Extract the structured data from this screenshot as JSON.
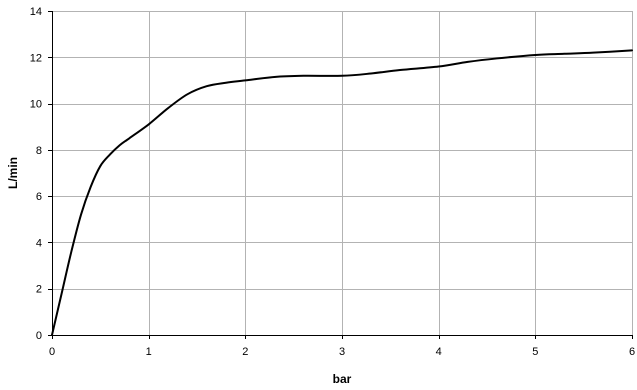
{
  "chart_data": {
    "type": "line",
    "title": "",
    "xlabel": "bar",
    "ylabel": "L/min",
    "xlim": [
      0,
      6
    ],
    "ylim": [
      0,
      14
    ],
    "xticks": [
      0,
      1,
      2,
      3,
      4,
      5,
      6
    ],
    "yticks": [
      0,
      2,
      4,
      6,
      8,
      10,
      12,
      14
    ],
    "grid": true,
    "series": [
      {
        "x": [
          0,
          0.1,
          0.2,
          0.3,
          0.4,
          0.5,
          0.6,
          0.7,
          0.8,
          1.0,
          1.2,
          1.4,
          1.6,
          1.8,
          2.0,
          2.3,
          2.6,
          3.0,
          3.3,
          3.6,
          4.0,
          4.3,
          4.6,
          5.0,
          5.3,
          5.6,
          6.0
        ],
        "y": [
          0,
          1.8,
          3.6,
          5.2,
          6.4,
          7.3,
          7.8,
          8.2,
          8.5,
          9.1,
          9.8,
          10.4,
          10.75,
          10.9,
          11.0,
          11.15,
          11.2,
          11.2,
          11.3,
          11.45,
          11.6,
          11.8,
          11.95,
          12.1,
          12.15,
          12.2,
          12.3
        ]
      }
    ],
    "colors": {
      "line": "#000000",
      "grid": "#b3b3b3",
      "axis": "#000000"
    }
  }
}
